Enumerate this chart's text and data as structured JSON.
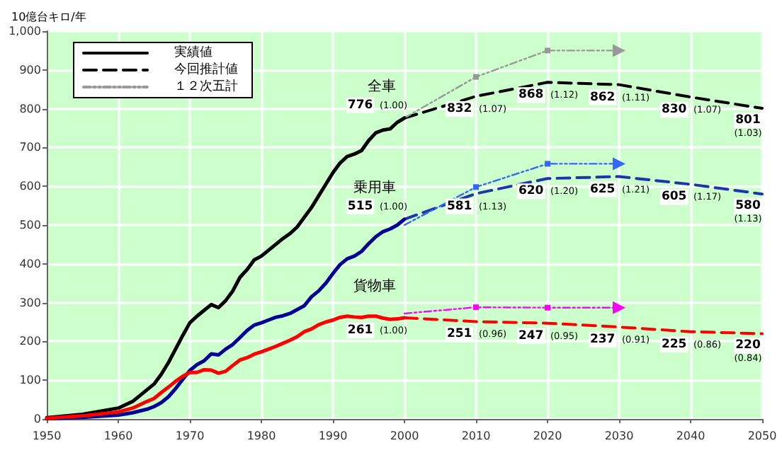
{
  "chart_data": {
    "type": "line",
    "ylabel": "10億台キロ/年",
    "xlim": [
      1950,
      2050
    ],
    "xticks": [
      1950,
      1960,
      1970,
      1980,
      1990,
      2000,
      2010,
      2020,
      2030,
      2040,
      2050
    ],
    "ylim": [
      0,
      1000
    ],
    "yticks": [
      0,
      100,
      200,
      300,
      400,
      500,
      600,
      700,
      800,
      900,
      {
        "value": 1000,
        "label": "1,000"
      }
    ],
    "grid": true,
    "legend": "top left",
    "annotations": [
      "全車",
      "乗用車",
      "貨物車"
    ],
    "series": [
      {
        "name": "実績値",
        "color": "#000000",
        "line_style": "solid",
        "marker": "none",
        "x": [
          1950,
          1955,
          1960,
          1962,
          1964,
          1965,
          1966,
          1967,
          1968,
          1969,
          1970,
          1971,
          1972,
          1973,
          1974,
          1975,
          1976,
          1977,
          1978,
          1979,
          1980,
          1981,
          1982,
          1983,
          1984,
          1985,
          1986,
          1987,
          1988,
          1989,
          1990,
          1991,
          1992,
          1993,
          1994,
          1995,
          1996,
          1997,
          1998,
          1999,
          2000
        ],
        "values": [
          3,
          12,
          28,
          45,
          75,
          90,
          115,
          145,
          180,
          215,
          248,
          265,
          280,
          295,
          287,
          305,
          330,
          365,
          385,
          410,
          420,
          435,
          450,
          465,
          478,
          495,
          520,
          545,
          575,
          605,
          635,
          660,
          677,
          683,
          692,
          718,
          738,
          745,
          748,
          765,
          776
        ]
      },
      {
        "name": "今回推計値",
        "color": "#000000",
        "line_style": "dashed",
        "marker": "none",
        "x": [
          2000,
          2010,
          2020,
          2030,
          2040,
          2050
        ],
        "values": [
          776,
          832,
          868,
          862,
          830,
          801
        ],
        "value_labels": [
          "776 (1.00)",
          "832 (1.07)",
          "868 (1.12)",
          "862 (1.11)",
          "830 (1.07)",
          "801 (1.03)"
        ]
      },
      {
        "name": "１２次五計",
        "color": "#999999",
        "line_style": "dotted",
        "marker": "square",
        "x": [
          2000,
          2010,
          2020,
          2030
        ],
        "values": [
          776,
          882,
          950,
          950
        ]
      },
      {
        "color": "#000099",
        "line_style": "solid",
        "marker": "none",
        "x": [
          1950,
          1955,
          1960,
          1962,
          1964,
          1965,
          1966,
          1967,
          1968,
          1969,
          1970,
          1971,
          1972,
          1973,
          1974,
          1975,
          1976,
          1977,
          1978,
          1979,
          1980,
          1981,
          1982,
          1983,
          1984,
          1985,
          1986,
          1987,
          1988,
          1989,
          1990,
          1991,
          1992,
          1993,
          1994,
          1995,
          1996,
          1997,
          1998,
          1999,
          2000
        ],
        "values": [
          1,
          4,
          10,
          16,
          25,
          32,
          42,
          57,
          78,
          102,
          125,
          140,
          150,
          168,
          165,
          180,
          192,
          210,
          228,
          242,
          248,
          255,
          262,
          266,
          272,
          282,
          292,
          315,
          330,
          350,
          375,
          398,
          413,
          420,
          432,
          452,
          470,
          483,
          490,
          500,
          515
        ]
      },
      {
        "color": "#1f33aa",
        "line_style": "dashed",
        "marker": "none",
        "x": [
          2000,
          2010,
          2020,
          2030,
          2040,
          2050
        ],
        "values": [
          515,
          581,
          620,
          625,
          605,
          580
        ],
        "value_labels": [
          "515 (1.00)",
          "581 (1.13)",
          "620 (1.20)",
          "625 (1.21)",
          "605 (1.17)",
          "580 (1.13)"
        ]
      },
      {
        "color": "#3366ff",
        "line_style": "dotted",
        "marker": "square",
        "x": [
          2000,
          2010,
          2020,
          2030
        ],
        "values": [
          500,
          598,
          658,
          658
        ]
      },
      {
        "color": "#ff0000",
        "line_style": "solid",
        "marker": "none",
        "x": [
          1950,
          1955,
          1960,
          1962,
          1964,
          1965,
          1966,
          1967,
          1968,
          1969,
          1970,
          1971,
          1972,
          1973,
          1974,
          1975,
          1976,
          1977,
          1978,
          1979,
          1980,
          1981,
          1982,
          1983,
          1984,
          1985,
          1986,
          1987,
          1988,
          1989,
          1990,
          1991,
          1992,
          1993,
          1994,
          1995,
          1996,
          1997,
          1998,
          1999,
          2000
        ],
        "values": [
          2,
          8,
          18,
          28,
          45,
          53,
          68,
          82,
          97,
          110,
          120,
          120,
          127,
          126,
          118,
          123,
          138,
          152,
          158,
          167,
          173,
          180,
          187,
          195,
          203,
          212,
          225,
          232,
          243,
          250,
          255,
          262,
          265,
          263,
          262,
          265,
          265,
          260,
          257,
          258,
          261
        ]
      },
      {
        "color": "#ff0000",
        "line_style": "dashed",
        "marker": "none",
        "x": [
          2000,
          2010,
          2020,
          2030,
          2040,
          2050
        ],
        "values": [
          261,
          251,
          247,
          237,
          225,
          220
        ],
        "value_labels": [
          "261 (1.00)",
          "251 (0.96)",
          "247 (0.95)",
          "237 (0.91)",
          "225 (0.86)",
          "220 (0.84)"
        ]
      },
      {
        "color": "#ff00ff",
        "line_style": "dotted",
        "marker": "square",
        "x": [
          2000,
          2010,
          2020,
          2030
        ],
        "values": [
          272,
          288,
          287,
          287
        ]
      }
    ]
  }
}
